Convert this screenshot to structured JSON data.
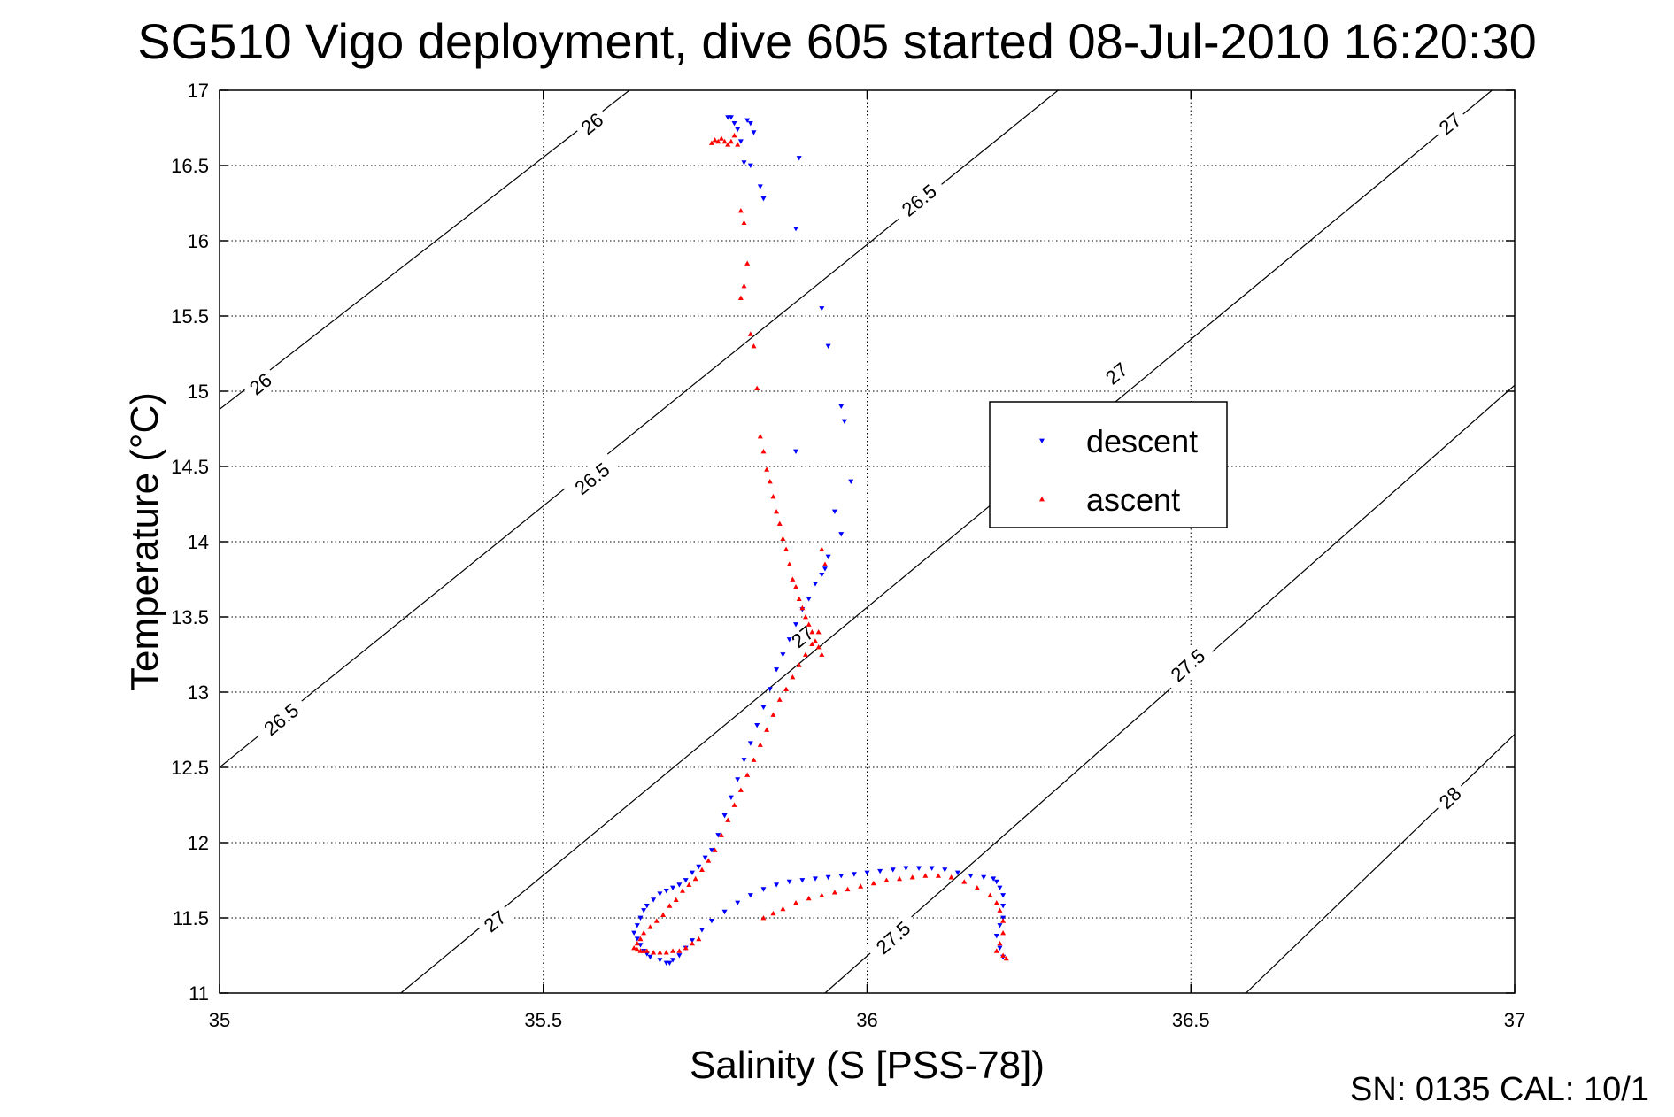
{
  "title": "SG510 Vigo deployment, dive 605 started 08-Jul-2010 16:20:30",
  "footer": "SN: 0135  CAL: 10/1",
  "chart_data": {
    "type": "scatter",
    "title": "SG510 Vigo deployment, dive 605 started 08-Jul-2010 16:20:30",
    "xlabel": "Salinity (S [PSS-78])",
    "ylabel": "Temperature (°C)",
    "xlim": [
      35,
      37
    ],
    "ylim": [
      11,
      17
    ],
    "xticks": [
      "35",
      "35.5",
      "36",
      "36.5",
      "37"
    ],
    "yticks": [
      "11",
      "11.5",
      "12",
      "12.5",
      "13",
      "13.5",
      "14",
      "14.5",
      "15",
      "15.5",
      "16",
      "16.5",
      "17"
    ],
    "grid": true,
    "legend_position": "center-right",
    "density_contours": [
      {
        "label": "26",
        "points": [
          [
            35.0,
            14.88
          ],
          [
            35.633,
            17.0
          ]
        ],
        "label_positions": [
          [
            35.575,
            16.78
          ],
          [
            35.063,
            15.05
          ]
        ]
      },
      {
        "label": "26.5",
        "points": [
          [
            35.0,
            12.5
          ],
          [
            36.295,
            17.0
          ]
        ],
        "label_positions": [
          [
            36.08,
            16.27
          ],
          [
            35.575,
            14.42
          ],
          [
            35.095,
            12.82
          ]
        ]
      },
      {
        "label": "27",
        "points": [
          [
            35.28,
            11.0
          ],
          [
            36.965,
            17.0
          ]
        ],
        "label_positions": [
          [
            36.9,
            16.78
          ],
          [
            36.385,
            15.12
          ],
          [
            35.9,
            13.37
          ],
          [
            35.425,
            11.48
          ]
        ]
      },
      {
        "label": "27.5",
        "points": [
          [
            35.935,
            11.0
          ],
          [
            37.0,
            15.04
          ]
        ],
        "label_positions": [
          [
            36.495,
            13.18
          ],
          [
            36.04,
            11.37
          ]
        ]
      },
      {
        "label": "28",
        "points": [
          [
            36.585,
            11.0
          ],
          [
            37.0,
            12.72
          ]
        ],
        "label_positions": [
          [
            36.9,
            12.3
          ]
        ]
      }
    ],
    "series": [
      {
        "name": "descent",
        "color": "#0000ff",
        "marker": "triangle-down",
        "x": [
          35.785,
          35.79,
          35.795,
          35.8,
          35.805,
          35.81,
          35.82,
          35.815,
          35.82,
          35.825,
          35.835,
          35.84,
          35.895,
          35.89,
          35.93,
          35.94,
          35.96,
          35.965,
          35.89,
          35.975,
          35.95,
          35.96,
          35.94,
          35.935,
          35.93,
          35.92,
          35.91,
          35.9,
          35.89,
          35.88,
          35.87,
          35.86,
          35.85,
          35.84,
          35.83,
          35.82,
          35.81,
          35.8,
          35.79,
          35.78,
          35.77,
          35.76,
          35.75,
          35.74,
          35.73,
          35.72,
          35.71,
          35.7,
          35.69,
          35.68,
          35.67,
          35.66,
          35.655,
          35.65,
          35.645,
          35.64,
          35.645,
          35.65,
          35.655,
          35.66,
          35.665,
          35.68,
          35.69,
          35.695,
          35.7,
          35.71,
          35.72,
          35.73,
          35.745,
          35.76,
          35.78,
          35.8,
          35.82,
          35.84,
          35.86,
          35.88,
          35.9,
          35.92,
          35.94,
          35.96,
          35.98,
          36.0,
          36.02,
          36.04,
          36.06,
          36.08,
          36.1,
          36.12,
          36.14,
          36.16,
          36.18,
          36.195,
          36.2,
          36.205,
          36.21,
          36.21,
          36.21,
          36.205,
          36.2,
          36.205,
          36.21
        ],
        "y": [
          16.82,
          16.82,
          16.78,
          16.74,
          16.66,
          16.52,
          16.5,
          16.8,
          16.78,
          16.72,
          16.36,
          16.28,
          16.55,
          16.08,
          15.55,
          15.3,
          14.9,
          14.8,
          14.6,
          14.4,
          14.2,
          14.05,
          13.9,
          13.82,
          13.78,
          13.72,
          13.62,
          13.55,
          13.45,
          13.35,
          13.25,
          13.15,
          13.02,
          12.9,
          12.78,
          12.66,
          12.55,
          12.42,
          12.3,
          12.18,
          12.05,
          11.95,
          11.9,
          11.84,
          11.8,
          11.75,
          11.72,
          11.7,
          11.68,
          11.66,
          11.62,
          11.58,
          11.55,
          11.5,
          11.45,
          11.4,
          11.36,
          11.32,
          11.28,
          11.26,
          11.24,
          11.22,
          11.2,
          11.2,
          11.22,
          11.25,
          11.3,
          11.35,
          11.42,
          11.48,
          11.54,
          11.6,
          11.65,
          11.69,
          11.72,
          11.74,
          11.75,
          11.76,
          11.77,
          11.78,
          11.79,
          11.8,
          11.81,
          11.82,
          11.83,
          11.83,
          11.83,
          11.82,
          11.8,
          11.78,
          11.77,
          11.76,
          11.74,
          11.7,
          11.65,
          11.58,
          11.5,
          11.45,
          11.38,
          11.3,
          11.24
        ]
      },
      {
        "name": "ascent",
        "color": "#ff0000",
        "marker": "triangle-up",
        "x": [
          35.76,
          35.765,
          35.77,
          35.775,
          35.78,
          35.785,
          35.79,
          35.795,
          35.8,
          35.805,
          35.81,
          35.815,
          35.81,
          35.805,
          35.82,
          35.825,
          35.83,
          35.835,
          35.84,
          35.845,
          35.85,
          35.855,
          35.86,
          35.865,
          35.87,
          35.875,
          35.88,
          35.885,
          35.89,
          35.895,
          35.9,
          35.905,
          35.91,
          35.915,
          35.92,
          35.925,
          35.93,
          35.93,
          35.935,
          35.925,
          35.915,
          35.905,
          35.895,
          35.885,
          35.875,
          35.865,
          35.855,
          35.845,
          35.835,
          35.825,
          35.815,
          35.805,
          35.795,
          35.785,
          35.775,
          35.765,
          35.755,
          35.745,
          35.735,
          35.725,
          35.715,
          35.705,
          35.695,
          35.685,
          35.675,
          35.665,
          35.655,
          35.65,
          35.645,
          35.64,
          35.645,
          35.65,
          35.655,
          35.66,
          35.67,
          35.68,
          35.69,
          35.7,
          35.71,
          35.72,
          35.73,
          35.74,
          35.84,
          35.855,
          35.87,
          35.89,
          35.91,
          35.93,
          35.95,
          35.97,
          35.99,
          36.01,
          36.03,
          36.05,
          36.07,
          36.09,
          36.11,
          36.13,
          36.15,
          36.17,
          36.19,
          36.2,
          36.205,
          36.21,
          36.21,
          36.205,
          36.2,
          36.21,
          36.215
        ],
        "y": [
          16.65,
          16.67,
          16.66,
          16.68,
          16.66,
          16.64,
          16.66,
          16.7,
          16.64,
          16.2,
          16.12,
          15.85,
          15.7,
          15.62,
          15.38,
          15.3,
          15.02,
          14.7,
          14.6,
          14.48,
          14.4,
          14.3,
          14.2,
          14.12,
          14.02,
          13.95,
          13.85,
          13.75,
          13.7,
          13.62,
          13.56,
          13.5,
          13.45,
          13.4,
          13.34,
          13.3,
          13.25,
          13.95,
          13.85,
          13.4,
          13.32,
          13.25,
          13.18,
          13.1,
          13.02,
          12.95,
          12.85,
          12.75,
          12.65,
          12.55,
          12.45,
          12.35,
          12.25,
          12.15,
          12.05,
          11.95,
          11.88,
          11.82,
          11.76,
          11.72,
          11.68,
          11.62,
          11.58,
          11.52,
          11.48,
          11.44,
          11.4,
          11.36,
          11.33,
          11.3,
          11.29,
          11.28,
          11.28,
          11.28,
          11.27,
          11.27,
          11.27,
          11.28,
          11.28,
          11.3,
          11.33,
          11.36,
          11.5,
          11.53,
          11.56,
          11.6,
          11.63,
          11.65,
          11.67,
          11.69,
          11.71,
          11.73,
          11.75,
          11.76,
          11.77,
          11.78,
          11.78,
          11.77,
          11.74,
          11.7,
          11.65,
          11.6,
          11.55,
          11.48,
          11.4,
          11.33,
          11.28,
          11.25,
          11.23
        ]
      }
    ]
  }
}
